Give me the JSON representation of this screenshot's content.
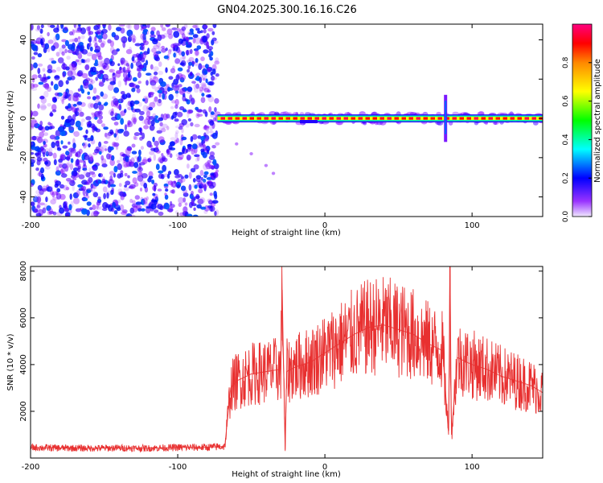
{
  "title": "GN04.2025.300.16.16.C26",
  "chart_data": [
    {
      "type": "heatmap",
      "xlabel": "Height of straight line (km)",
      "ylabel": "Frequency (Hz)",
      "xlim": [
        -200,
        148
      ],
      "ylim": [
        -50,
        48
      ],
      "x_ticks": [
        -200,
        -100,
        0,
        100
      ],
      "x_tick_labels": [
        "-200",
        "-100",
        "0",
        "100"
      ],
      "y_ticks": [
        -40,
        -20,
        0,
        20,
        40
      ],
      "y_tick_labels": [
        "-40",
        "-20",
        "0",
        "20",
        "40"
      ],
      "grid": false,
      "colorbar": {
        "label": "Normalized spectral amplitude",
        "range": [
          0,
          1
        ],
        "ticks": [
          0,
          0.2,
          0.4,
          0.6,
          0.8
        ],
        "tick_labels": [
          "0.0",
          "0.2",
          "0.4",
          "0.6",
          "0.8"
        ],
        "colormap": [
          "#e0e0ff",
          "#8800ff",
          "#0000ff",
          "#00ffff",
          "#00ff00",
          "#ffff00",
          "#ff8800",
          "#ff0000",
          "#ff00aa"
        ]
      },
      "features": {
        "noise_region_x": [
          -200,
          -73
        ],
        "noise_amplitude": 0.25,
        "carrier_frequency_hz": 0,
        "carrier_start_x": -73,
        "carrier_amplitude": 0.85,
        "doppler_trail": [
          [
            -60,
            -13
          ],
          [
            -50,
            -18
          ],
          [
            -40,
            -24
          ],
          [
            -35,
            -28
          ]
        ],
        "disturbance_x": [
          80,
          84
        ]
      }
    },
    {
      "type": "line",
      "xlabel": "Height of straight line (km)",
      "ylabel": "SNR (10 * v/v)",
      "xlim": [
        -200,
        148
      ],
      "ylim": [
        0,
        8200
      ],
      "x_ticks": [
        -200,
        -100,
        0,
        100
      ],
      "x_tick_labels": [
        "-200",
        "-100",
        "0",
        "100"
      ],
      "y_ticks": [
        2000,
        4000,
        6000,
        8000
      ],
      "y_tick_labels": [
        "2000",
        "4000",
        "6000",
        "8000"
      ],
      "grid": false,
      "series": [
        {
          "color": "#e83030",
          "x": [
            -200,
            -180,
            -160,
            -140,
            -120,
            -100,
            -80,
            -68,
            -64,
            -60,
            -50,
            -40,
            -30,
            -29,
            -27,
            -26,
            -20,
            -10,
            0,
            10,
            20,
            30,
            40,
            50,
            60,
            70,
            80,
            84,
            85,
            86,
            90,
            100,
            110,
            120,
            130,
            140,
            148
          ],
          "y": [
            450,
            430,
            420,
            430,
            420,
            450,
            460,
            500,
            3000,
            3300,
            3600,
            3700,
            3800,
            7200,
            300,
            3700,
            3900,
            4100,
            4500,
            4900,
            5300,
            5600,
            5700,
            5500,
            5300,
            4900,
            4600,
            1000,
            8200,
            1000,
            4300,
            4000,
            3800,
            3500,
            3300,
            3100,
            2800
          ]
        }
      ]
    }
  ]
}
